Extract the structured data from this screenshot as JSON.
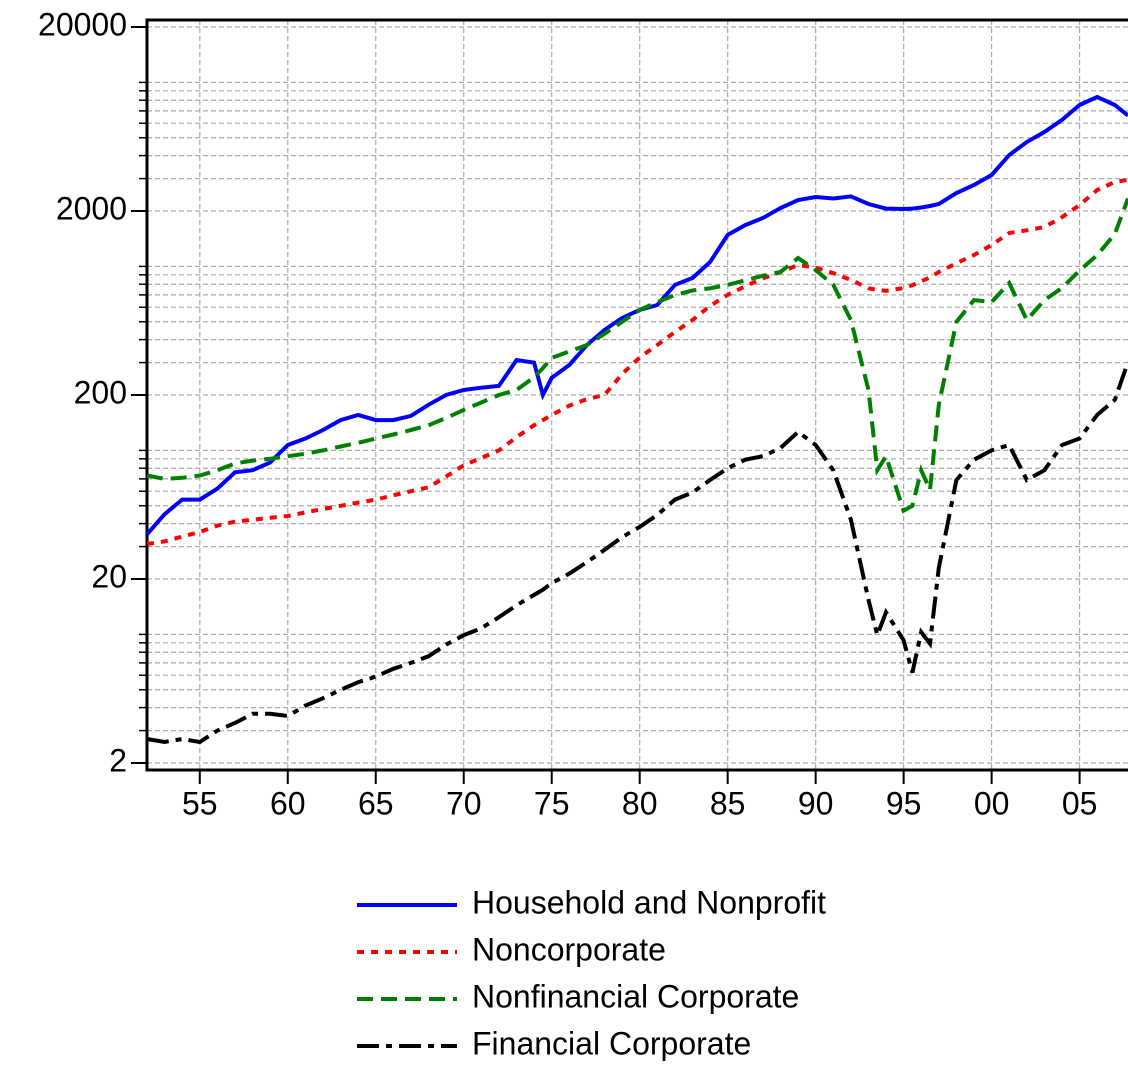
{
  "chart_data": {
    "type": "line",
    "log_y": true,
    "grid": true,
    "x": [
      1952,
      1953,
      1954,
      1955,
      1956,
      1957,
      1958,
      1959,
      1960,
      1961,
      1962,
      1963,
      1964,
      1965,
      1966,
      1967,
      1968,
      1969,
      1970,
      1971,
      1972,
      1973,
      1974,
      1974.5,
      1975,
      1976,
      1977,
      1978,
      1979,
      1980,
      1981,
      1982,
      1983,
      1984,
      1985,
      1986,
      1987,
      1988,
      1989,
      1990,
      1991,
      1992,
      1993,
      1993.5,
      1994,
      1995,
      1995.5,
      1996,
      1996.5,
      1997,
      1998,
      1999,
      2000,
      2001,
      2002,
      2003,
      2004,
      2005,
      2006,
      2007,
      2007.75
    ],
    "xlim": [
      1952,
      2007.75
    ],
    "xticks": [
      {
        "value": 1955,
        "label": "55"
      },
      {
        "value": 1960,
        "label": "60"
      },
      {
        "value": 1965,
        "label": "65"
      },
      {
        "value": 1970,
        "label": "70"
      },
      {
        "value": 1975,
        "label": "75"
      },
      {
        "value": 1980,
        "label": "80"
      },
      {
        "value": 1985,
        "label": "85"
      },
      {
        "value": 1990,
        "label": "90"
      },
      {
        "value": 1995,
        "label": "95"
      },
      {
        "value": 2000,
        "label": "00"
      },
      {
        "value": 2005,
        "label": "05"
      }
    ],
    "ylim": [
      2,
      20000
    ],
    "yticks": [
      2,
      20,
      200,
      2000,
      20000
    ],
    "y_minor_ticks": [
      3,
      4,
      5,
      6,
      7,
      8,
      9,
      10,
      30,
      40,
      50,
      60,
      70,
      80,
      90,
      100,
      300,
      400,
      500,
      600,
      700,
      800,
      900,
      1000,
      3000,
      4000,
      5000,
      6000,
      7000,
      8000,
      9000,
      10000
    ],
    "series": [
      {
        "name": "Household and Nonprofit",
        "color": "#0000ff",
        "linestyle": "solid",
        "values": [
          35,
          45,
          54,
          54,
          62,
          76,
          78,
          86,
          107,
          116,
          129,
          146,
          156,
          146,
          146,
          154,
          177,
          200,
          213,
          219,
          224,
          310,
          300,
          200,
          248,
          291,
          374,
          451,
          524,
          580,
          617,
          793,
          865,
          1057,
          1483,
          1677,
          1832,
          2076,
          2296,
          2384,
          2340,
          2400,
          2184,
          2120,
          2060,
          2050,
          2060,
          2090,
          2130,
          2184,
          2506,
          2768,
          3140,
          4028,
          4742,
          5374,
          6252,
          7534,
          8336,
          7534,
          6600
        ]
      },
      {
        "name": "Noncorporate",
        "color": "#ff0000",
        "linestyle": "dotted",
        "values": [
          31,
          32,
          34,
          36,
          39,
          41,
          42,
          43,
          44,
          46,
          48,
          50,
          52,
          54,
          57,
          60,
          63,
          72,
          83,
          91,
          100,
          118,
          137,
          146,
          156,
          175,
          190,
          200,
          260,
          320,
          374,
          440,
          511,
          610,
          700,
          780,
          860,
          932,
          1018,
          985,
          920,
          844,
          760,
          745,
          737,
          763,
          790,
          830,
          870,
          932,
          1040,
          1153,
          1307,
          1518,
          1570,
          1637,
          1850,
          2157,
          2600,
          2876,
          2950
        ]
      },
      {
        "name": "Nonfinancial Corporate",
        "color": "#008000",
        "linestyle": "dashed",
        "values": [
          73,
          70,
          71,
          73,
          78,
          85,
          88,
          90,
          93,
          96,
          100,
          105,
          110,
          116,
          122,
          129,
          137,
          150,
          166,
          182,
          200,
          213,
          250,
          280,
          318,
          345,
          374,
          430,
          500,
          580,
          640,
          698,
          740,
          760,
          793,
          840,
          890,
          932,
          1111,
          955,
          793,
          511,
          213,
          78,
          93,
          47,
          50,
          78,
          61,
          177,
          499,
          656,
          640,
          812,
          511,
          656,
          763,
          950,
          1150,
          1500,
          2340
        ]
      },
      {
        "name": "Financial Corporate",
        "color": "#000000",
        "linestyle": "dashdot",
        "values": [
          2.7,
          2.6,
          2.7,
          2.6,
          3.0,
          3.3,
          3.7,
          3.7,
          3.6,
          4.1,
          4.5,
          5.0,
          5.5,
          5.9,
          6.5,
          7.0,
          7.6,
          8.8,
          9.9,
          10.8,
          12.4,
          14.4,
          16.4,
          17.5,
          19,
          21.4,
          24.7,
          28.8,
          33.8,
          38.4,
          44.6,
          54,
          59,
          69,
          80,
          89,
          93,
          103,
          126,
          107,
          78,
          42,
          15.4,
          9.9,
          13.2,
          9.3,
          6.2,
          10.3,
          8.9,
          23,
          69,
          89,
          100,
          107,
          69,
          78,
          107,
          116,
          156,
          188,
          302
        ]
      }
    ]
  }
}
